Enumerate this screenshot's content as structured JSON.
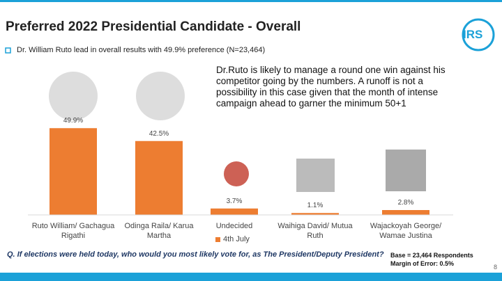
{
  "slide": {
    "title": "Preferred 2022 Presidential Candidate - Overall",
    "logo": "IRS",
    "bullet": "Dr. William Ruto lead in overall results with 49.9% preference (N=23,464)",
    "commentary": "Dr.Ruto is likely to manage a round one win against his competitor going by the numbers. A runoff is  not a possibility in this case given that the month of intense campaign ahead to garner the minimum 50+1",
    "question": "Q. If elections were held today, who would you most likely vote for, as The President/Deputy President?",
    "base": "Base = 23,464 Respondents",
    "margin": "Margin of Error: 0.5%",
    "page_number": "8"
  },
  "chart_data": {
    "type": "bar",
    "categories": [
      "Ruto William/ Gachagua Rigathi",
      "Odinga Raila/ Karua Martha",
      "Undecided",
      "Waihiga David/ Mutua Ruth",
      "Wajackoyah George/ Wamae Justina"
    ],
    "series": [
      {
        "name": "4th July",
        "color": "#ED7D31",
        "values": [
          49.9,
          42.5,
          3.7,
          1.1,
          2.8
        ],
        "value_labels": [
          "49.9%",
          "42.5%",
          "3.7%",
          "1.1%",
          "2.8%"
        ]
      }
    ]
  }
}
